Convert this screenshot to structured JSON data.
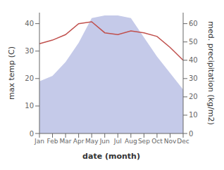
{
  "chart_data": {
    "type": "line",
    "xlabel": "date (month)",
    "ylabel": "max temp (C)",
    "y2label": "med. precipitation (kg/m2)",
    "categories": [
      "Jan",
      "Feb",
      "Mar",
      "Apr",
      "May",
      "Jun",
      "Jul",
      "Aug",
      "Sep",
      "Oct",
      "Nov",
      "Dec"
    ],
    "series": [
      {
        "type": "area",
        "color": "#c5cae9",
        "values": [
          19,
          21,
          26,
          33,
          42,
          43,
          43,
          42,
          35,
          28,
          22,
          16
        ]
      },
      {
        "type": "line",
        "axis": "y2",
        "color": "#c0504d",
        "values": [
          49,
          51,
          54,
          60,
          61,
          55,
          54,
          56,
          55,
          53,
          47,
          40
        ]
      }
    ],
    "ylim": [
      0,
      44
    ],
    "yticks": [
      0,
      10,
      20,
      30,
      40
    ],
    "y2lim": [
      0,
      66
    ],
    "y2ticks": [
      0,
      10,
      20,
      30,
      40,
      50,
      60
    ],
    "grid": false
  }
}
